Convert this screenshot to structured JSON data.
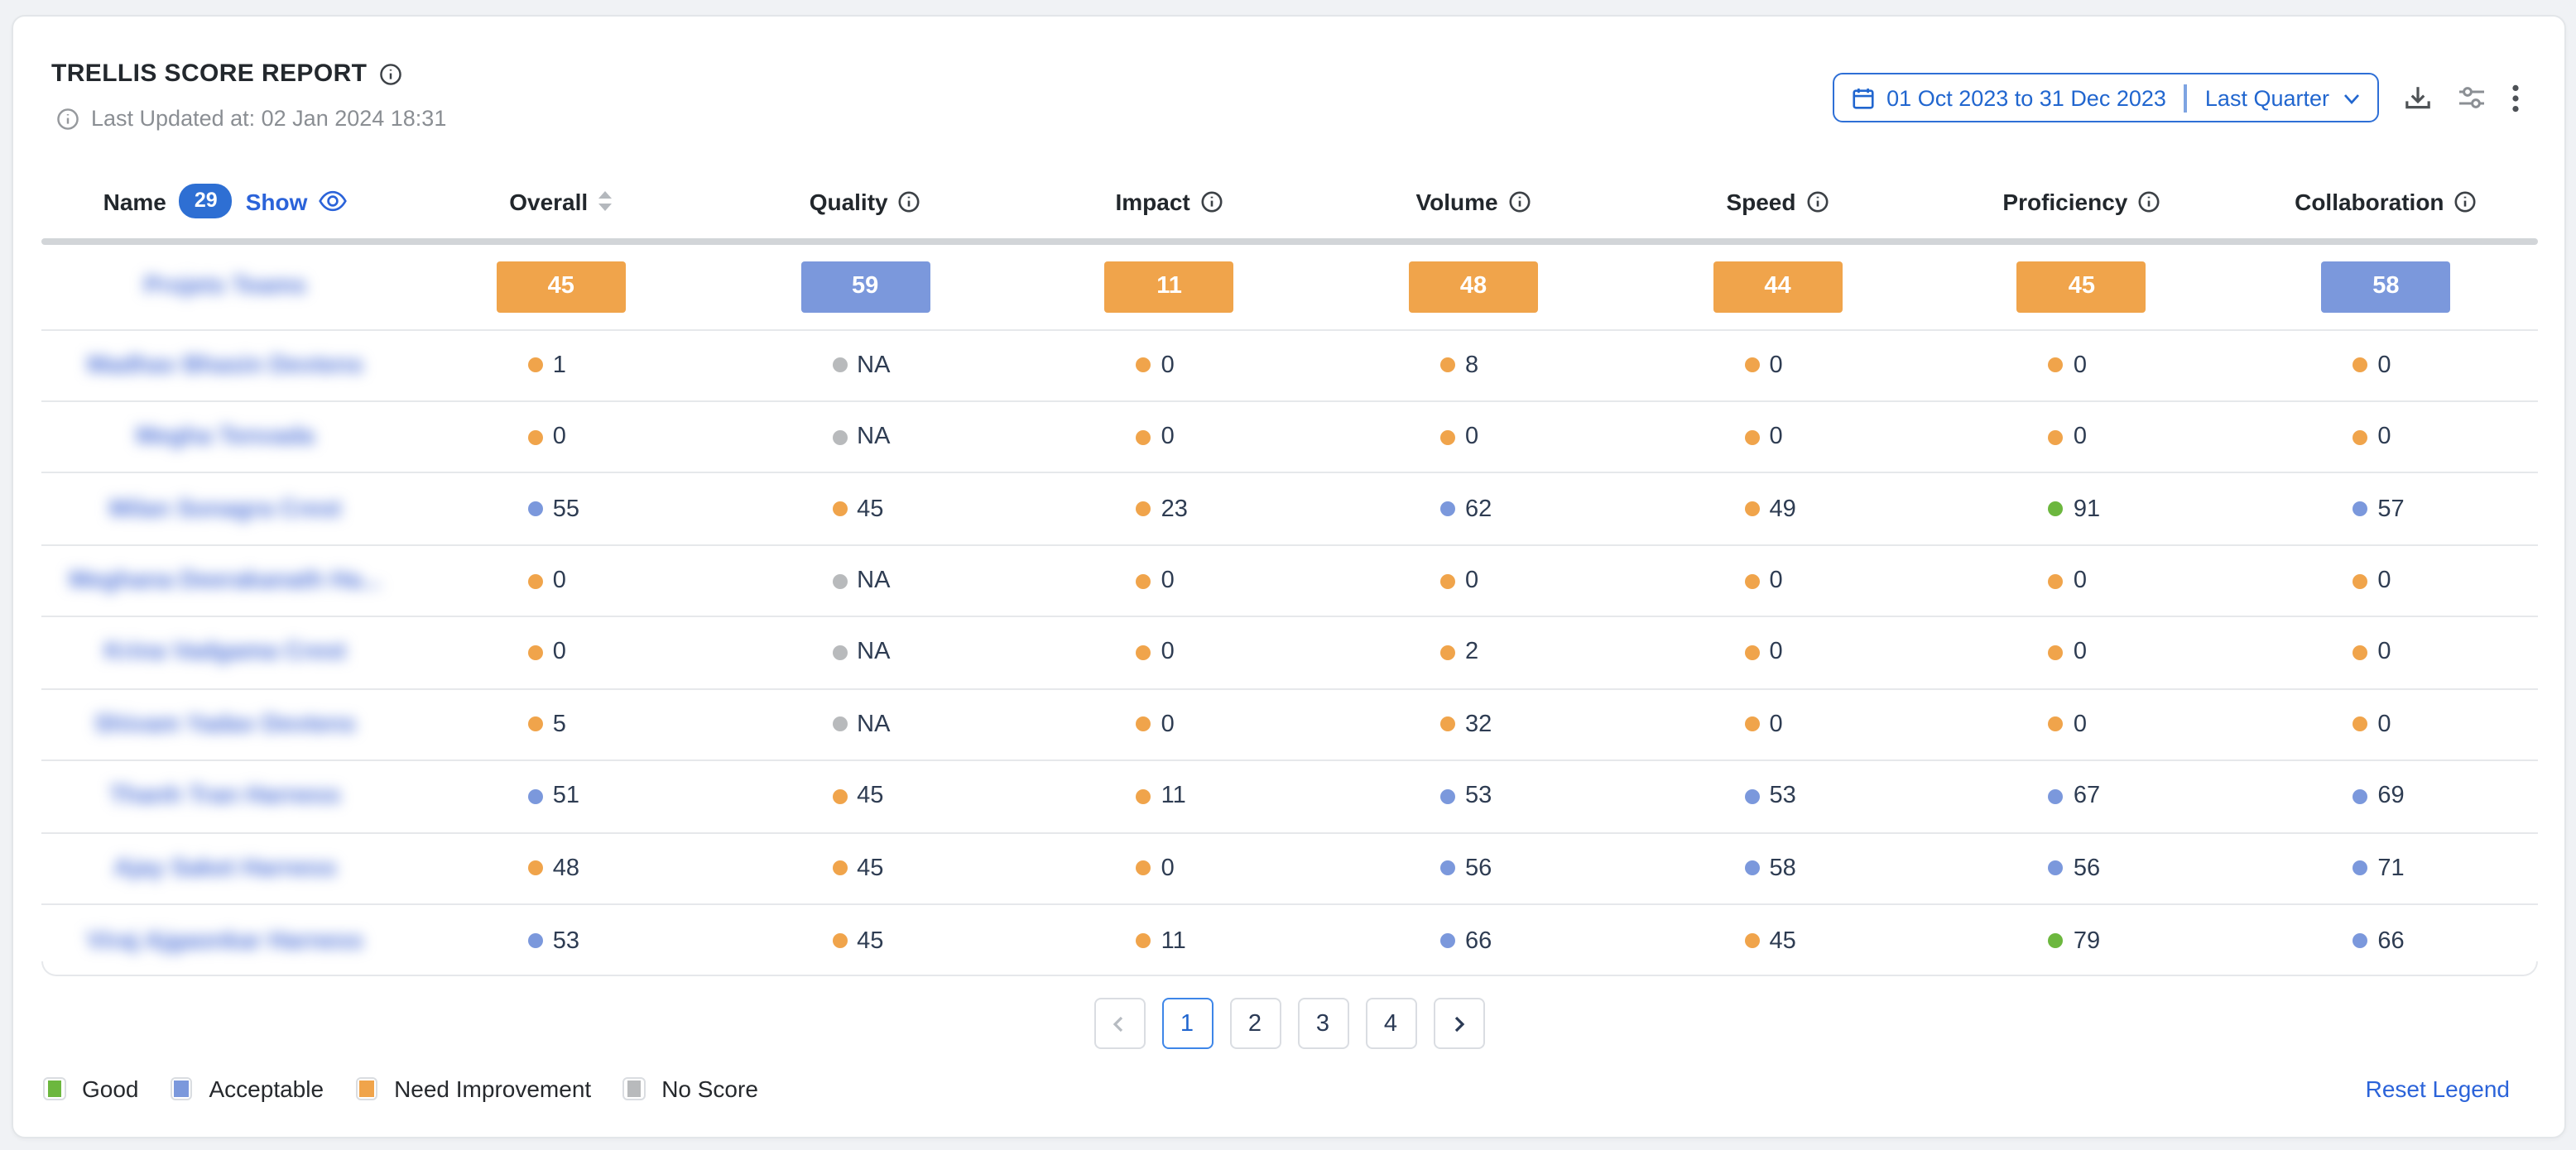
{
  "report": {
    "title": "TRELLIS SCORE REPORT",
    "last_updated": "Last Updated at: 02 Jan 2024 18:31",
    "date_range": "01 Oct 2023 to 31 Dec 2023",
    "date_preset": "Last Quarter"
  },
  "table": {
    "name_header": "Name",
    "name_count": "29",
    "show_label": "Show",
    "columns": [
      "Overall",
      "Quality",
      "Impact",
      "Volume",
      "Speed",
      "Proficiency",
      "Collaboration"
    ],
    "rows": [
      {
        "name": "Projets Teams",
        "redacted": true,
        "summary": true,
        "scores": [
          {
            "value": "45",
            "level": "need_improvement"
          },
          {
            "value": "59",
            "level": "acceptable"
          },
          {
            "value": "11",
            "level": "need_improvement"
          },
          {
            "value": "48",
            "level": "need_improvement"
          },
          {
            "value": "44",
            "level": "need_improvement"
          },
          {
            "value": "45",
            "level": "need_improvement"
          },
          {
            "value": "58",
            "level": "acceptable"
          }
        ]
      },
      {
        "name": "Madhav Bhasin Devtens",
        "redacted": true,
        "summary": false,
        "scores": [
          {
            "value": "1",
            "level": "need_improvement"
          },
          {
            "value": "NA",
            "level": "no_score"
          },
          {
            "value": "0",
            "level": "need_improvement"
          },
          {
            "value": "8",
            "level": "need_improvement"
          },
          {
            "value": "0",
            "level": "need_improvement"
          },
          {
            "value": "0",
            "level": "need_improvement"
          },
          {
            "value": "0",
            "level": "need_improvement"
          }
        ]
      },
      {
        "name": "Megha Tenvada",
        "redacted": true,
        "summary": false,
        "scores": [
          {
            "value": "0",
            "level": "need_improvement"
          },
          {
            "value": "NA",
            "level": "no_score"
          },
          {
            "value": "0",
            "level": "need_improvement"
          },
          {
            "value": "0",
            "level": "need_improvement"
          },
          {
            "value": "0",
            "level": "need_improvement"
          },
          {
            "value": "0",
            "level": "need_improvement"
          },
          {
            "value": "0",
            "level": "need_improvement"
          }
        ]
      },
      {
        "name": "Milan Sonagra Crest",
        "redacted": true,
        "summary": false,
        "scores": [
          {
            "value": "55",
            "level": "acceptable"
          },
          {
            "value": "45",
            "level": "need_improvement"
          },
          {
            "value": "23",
            "level": "need_improvement"
          },
          {
            "value": "62",
            "level": "acceptable"
          },
          {
            "value": "49",
            "level": "need_improvement"
          },
          {
            "value": "91",
            "level": "good"
          },
          {
            "value": "57",
            "level": "acceptable"
          }
        ]
      },
      {
        "name": "Meghana Deerakanath Ha...",
        "redacted": true,
        "summary": false,
        "scores": [
          {
            "value": "0",
            "level": "need_improvement"
          },
          {
            "value": "NA",
            "level": "no_score"
          },
          {
            "value": "0",
            "level": "need_improvement"
          },
          {
            "value": "0",
            "level": "need_improvement"
          },
          {
            "value": "0",
            "level": "need_improvement"
          },
          {
            "value": "0",
            "level": "need_improvement"
          },
          {
            "value": "0",
            "level": "need_improvement"
          }
        ]
      },
      {
        "name": "Krina Vadgama Crest",
        "redacted": true,
        "summary": false,
        "scores": [
          {
            "value": "0",
            "level": "need_improvement"
          },
          {
            "value": "NA",
            "level": "no_score"
          },
          {
            "value": "0",
            "level": "need_improvement"
          },
          {
            "value": "2",
            "level": "need_improvement"
          },
          {
            "value": "0",
            "level": "need_improvement"
          },
          {
            "value": "0",
            "level": "need_improvement"
          },
          {
            "value": "0",
            "level": "need_improvement"
          }
        ]
      },
      {
        "name": "Shivam Yadav Devtens",
        "redacted": true,
        "summary": false,
        "scores": [
          {
            "value": "5",
            "level": "need_improvement"
          },
          {
            "value": "NA",
            "level": "no_score"
          },
          {
            "value": "0",
            "level": "need_improvement"
          },
          {
            "value": "32",
            "level": "need_improvement"
          },
          {
            "value": "0",
            "level": "need_improvement"
          },
          {
            "value": "0",
            "level": "need_improvement"
          },
          {
            "value": "0",
            "level": "need_improvement"
          }
        ]
      },
      {
        "name": "Thanh Tran Harness",
        "redacted": true,
        "summary": false,
        "scores": [
          {
            "value": "51",
            "level": "acceptable"
          },
          {
            "value": "45",
            "level": "need_improvement"
          },
          {
            "value": "11",
            "level": "need_improvement"
          },
          {
            "value": "53",
            "level": "acceptable"
          },
          {
            "value": "53",
            "level": "acceptable"
          },
          {
            "value": "67",
            "level": "acceptable"
          },
          {
            "value": "69",
            "level": "acceptable"
          }
        ]
      },
      {
        "name": "Ajay Saket Harness",
        "redacted": true,
        "summary": false,
        "scores": [
          {
            "value": "48",
            "level": "need_improvement"
          },
          {
            "value": "45",
            "level": "need_improvement"
          },
          {
            "value": "0",
            "level": "need_improvement"
          },
          {
            "value": "56",
            "level": "acceptable"
          },
          {
            "value": "58",
            "level": "acceptable"
          },
          {
            "value": "56",
            "level": "acceptable"
          },
          {
            "value": "71",
            "level": "acceptable"
          }
        ]
      },
      {
        "name": "Viraj Ajgaonkar Harness",
        "redacted": true,
        "summary": false,
        "scores": [
          {
            "value": "53",
            "level": "acceptable"
          },
          {
            "value": "45",
            "level": "need_improvement"
          },
          {
            "value": "11",
            "level": "need_improvement"
          },
          {
            "value": "66",
            "level": "acceptable"
          },
          {
            "value": "45",
            "level": "need_improvement"
          },
          {
            "value": "79",
            "level": "good"
          },
          {
            "value": "66",
            "level": "acceptable"
          }
        ]
      }
    ]
  },
  "pagination": {
    "pages": [
      "1",
      "2",
      "3",
      "4"
    ],
    "active": "1"
  },
  "legend": {
    "items": [
      {
        "label": "Good",
        "level": "good"
      },
      {
        "label": "Acceptable",
        "level": "acceptable"
      },
      {
        "label": "Need Improvement",
        "level": "need_improvement"
      },
      {
        "label": "No Score",
        "level": "no_score"
      }
    ],
    "reset_label": "Reset Legend"
  },
  "colors": {
    "good": "#6cb73e",
    "acceptable": "#7b98dc",
    "need_improvement": "#f0a44b",
    "no_score": "#b8babc",
    "accent_blue": "#2166cf"
  }
}
